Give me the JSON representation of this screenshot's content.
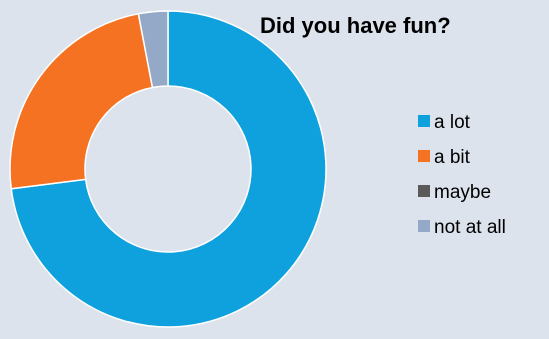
{
  "chart_data": {
    "type": "pie",
    "donut": true,
    "title": "Did you have fun?",
    "series": [
      {
        "name": "a lot",
        "value": 73,
        "color": "#0ea1de"
      },
      {
        "name": "a bit",
        "value": 24,
        "color": "#f47221"
      },
      {
        "name": "maybe",
        "value": 0,
        "color": "#5a5a5a"
      },
      {
        "name": "not at all",
        "value": 3,
        "color": "#94a9c8"
      }
    ],
    "start_angle_deg": 0,
    "direction": "clockwise",
    "legend_position": "right",
    "background_color": "#dce3ec",
    "slice_border_color": "#ffffff"
  }
}
